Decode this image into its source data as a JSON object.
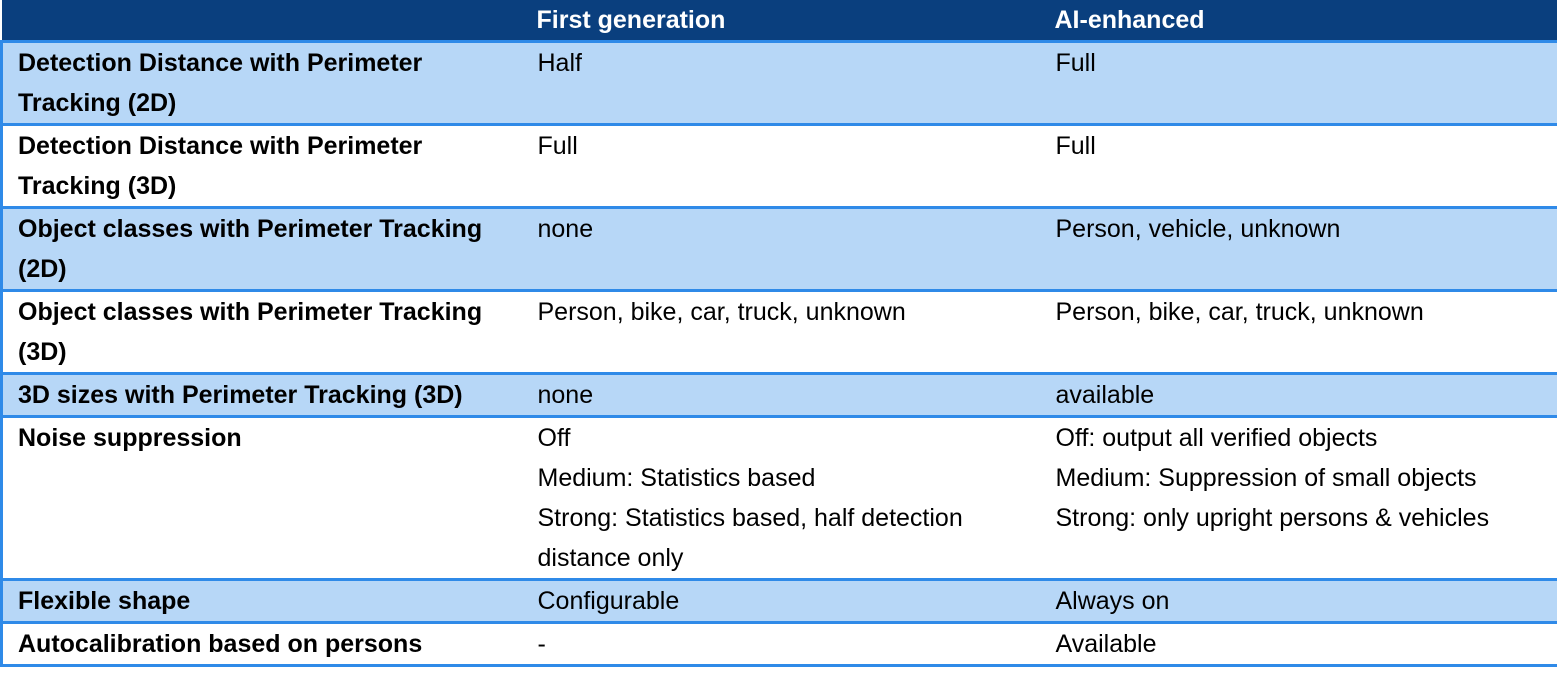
{
  "header": {
    "col1": "",
    "col2": "First generation",
    "col3": "AI-enhanced"
  },
  "rows": [
    {
      "feature": "Detection Distance with Perimeter Tracking (2D)",
      "first": [
        "Half"
      ],
      "ai": [
        "Full"
      ]
    },
    {
      "feature": "Detection Distance with Perimeter Tracking (3D)",
      "first": [
        "Full"
      ],
      "ai": [
        "Full"
      ]
    },
    {
      "feature": "Object classes with Perimeter Tracking (2D)",
      "first": [
        "none"
      ],
      "ai": [
        "Person, vehicle, unknown"
      ]
    },
    {
      "feature": "Object classes with Perimeter Tracking (3D)",
      "first": [
        "Person, bike, car, truck, unknown"
      ],
      "ai": [
        "Person, bike, car, truck, unknown"
      ]
    },
    {
      "feature": "3D sizes with Perimeter Tracking (3D)",
      "first": [
        "none"
      ],
      "ai": [
        "available"
      ]
    },
    {
      "feature": "Noise suppression",
      "first": [
        "Off",
        "Medium: Statistics based",
        "Strong: Statistics based, half detection distance only"
      ],
      "ai": [
        "Off: output all verified objects",
        "Medium: Suppression of small objects",
        "Strong: only upright persons & vehicles"
      ]
    },
    {
      "feature": "Flexible shape",
      "first": [
        "Configurable"
      ],
      "ai": [
        "Always on"
      ]
    },
    {
      "feature": "Autocalibration based on persons",
      "first": [
        "-"
      ],
      "ai": [
        "Available"
      ]
    }
  ],
  "colors": {
    "header_bg": "#0a3f7e",
    "shade_bg": "#b7d7f7",
    "border": "#2f8ae8"
  }
}
